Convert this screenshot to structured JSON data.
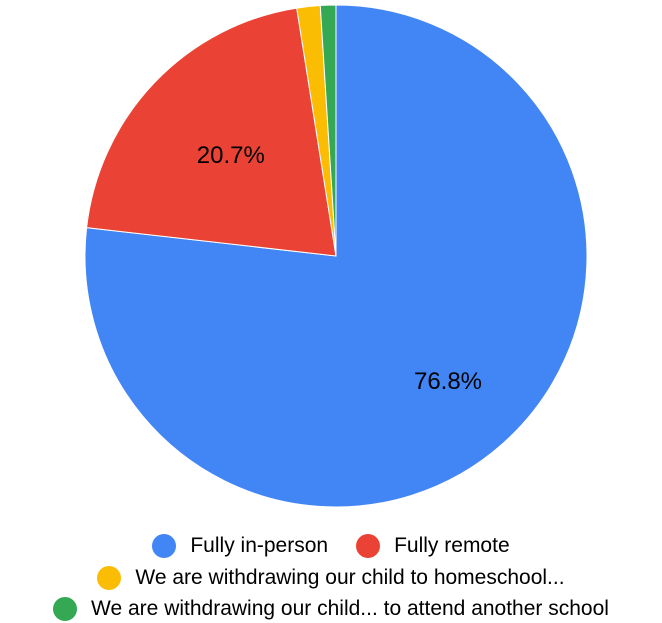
{
  "chart_data": {
    "type": "pie",
    "start_angle_deg": 0,
    "direction": "clockwise",
    "slices": [
      {
        "label": "Fully in-person",
        "value": 76.8,
        "data_label": "76.8%",
        "color": "#4285f4"
      },
      {
        "label": "Fully remote",
        "value": 20.7,
        "data_label": "20.7%",
        "color": "#ea4335"
      },
      {
        "label": "We are withdrawing our child to homeschool...",
        "value": 1.5,
        "data_label": "",
        "color": "#fbbc04"
      },
      {
        "label": "We are withdrawing our child... to attend another school",
        "value": 1.0,
        "data_label": "",
        "color": "#34a853"
      }
    ],
    "legend_position": "bottom"
  }
}
